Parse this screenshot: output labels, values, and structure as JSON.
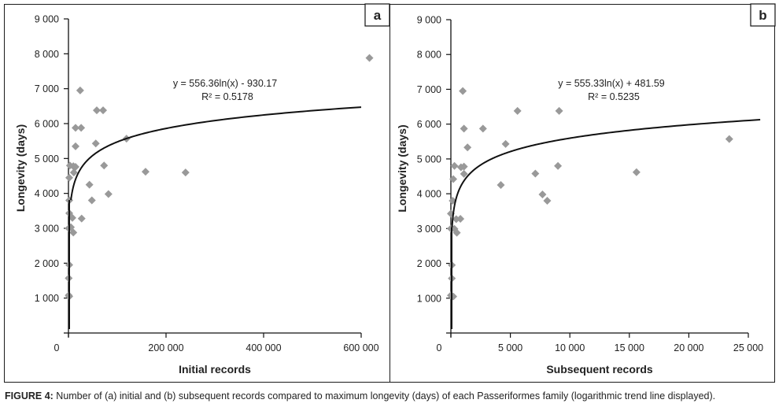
{
  "caption": {
    "label": "FIGURE 4:",
    "text": " Number of (a) initial and (b) subsequent records compared to maximum longevity (days) of each Passeriformes family (logarithmic trend line displayed)."
  },
  "chart_data": [
    {
      "type": "scatter",
      "panel": "a",
      "title": "",
      "xlabel": "Initial records",
      "ylabel": "Longevity (days)",
      "xlim": [
        0,
        600000
      ],
      "ylim": [
        0,
        9000
      ],
      "xticks": [
        0,
        200000,
        400000,
        600000
      ],
      "xtick_labels": [
        "0",
        "200 000",
        "400 000",
        "600 000"
      ],
      "yticks": [
        1000,
        2000,
        3000,
        4000,
        5000,
        6000,
        7000,
        8000,
        9000
      ],
      "ytick_labels": [
        "1 000",
        "2 000",
        "3 000",
        "4 000",
        "5 000",
        "6 000",
        "7 000",
        "8 000",
        "9 000"
      ],
      "grid": false,
      "marker": "diamond",
      "marker_color": "#999999",
      "trendline": {
        "type": "logarithmic",
        "a": 556.36,
        "b": -930.17,
        "r2": 0.5178,
        "equation_label": "y = 556.36ln(x) - 930.17",
        "r2_label": "R² = 0.5178"
      },
      "points": [
        [
          24000,
          6950
        ],
        [
          58000,
          6380
        ],
        [
          71000,
          6380
        ],
        [
          14500,
          5880
        ],
        [
          26000,
          5880
        ],
        [
          14500,
          5350
        ],
        [
          56000,
          5430
        ],
        [
          119000,
          5570
        ],
        [
          3000,
          4800
        ],
        [
          10000,
          4780
        ],
        [
          14500,
          4760
        ],
        [
          11000,
          4600
        ],
        [
          1600,
          4450
        ],
        [
          73000,
          4800
        ],
        [
          158000,
          4620
        ],
        [
          240000,
          4600
        ],
        [
          43000,
          4250
        ],
        [
          82000,
          3980
        ],
        [
          48000,
          3800
        ],
        [
          1600,
          3800
        ],
        [
          1600,
          3430
        ],
        [
          8000,
          3300
        ],
        [
          27000,
          3280
        ],
        [
          500,
          3000
        ],
        [
          5000,
          3030
        ],
        [
          10000,
          2880
        ],
        [
          1600,
          1950
        ],
        [
          500,
          1570
        ],
        [
          500,
          1080
        ],
        [
          1600,
          1050
        ],
        [
          617000,
          7880
        ]
      ]
    },
    {
      "type": "scatter",
      "panel": "b",
      "title": "",
      "xlabel": "Subsequent records",
      "ylabel": "Longevity (days)",
      "xlim": [
        0,
        25000
      ],
      "ylim": [
        0,
        9000
      ],
      "xticks": [
        0,
        5000,
        10000,
        15000,
        20000,
        25000
      ],
      "xtick_labels": [
        "0",
        "5 000",
        "10 000",
        "15 000",
        "20 000",
        "25 000"
      ],
      "yticks": [
        1000,
        2000,
        3000,
        4000,
        5000,
        6000,
        7000,
        8000,
        9000
      ],
      "ytick_labels": [
        "1 000",
        "2 000",
        "3 000",
        "4 000",
        "5 000",
        "6 000",
        "7 000",
        "8 000",
        "9 000"
      ],
      "grid": false,
      "marker": "diamond",
      "marker_color": "#999999",
      "trendline": {
        "type": "logarithmic",
        "a": 555.33,
        "b": 481.59,
        "r2": 0.5235,
        "equation_label": "y = 555.33ln(x) + 481.59",
        "r2_label": "R² = 0.5235"
      },
      "points": [
        [
          1000,
          6950
        ],
        [
          5600,
          6380
        ],
        [
          9100,
          6380
        ],
        [
          1100,
          5870
        ],
        [
          2700,
          5870
        ],
        [
          1400,
          5330
        ],
        [
          4600,
          5430
        ],
        [
          300,
          4800
        ],
        [
          850,
          4760
        ],
        [
          1100,
          4780
        ],
        [
          1100,
          4570
        ],
        [
          200,
          4420
        ],
        [
          4200,
          4250
        ],
        [
          7100,
          4580
        ],
        [
          9000,
          4800
        ],
        [
          7700,
          3980
        ],
        [
          8100,
          3800
        ],
        [
          23400,
          5570
        ],
        [
          15600,
          4620
        ],
        [
          150,
          3800
        ],
        [
          0,
          3430
        ],
        [
          450,
          3270
        ],
        [
          800,
          3280
        ],
        [
          0,
          3000
        ],
        [
          300,
          2990
        ],
        [
          500,
          2880
        ],
        [
          80,
          1950
        ],
        [
          80,
          1570
        ],
        [
          0,
          1080
        ],
        [
          200,
          1050
        ]
      ]
    }
  ]
}
